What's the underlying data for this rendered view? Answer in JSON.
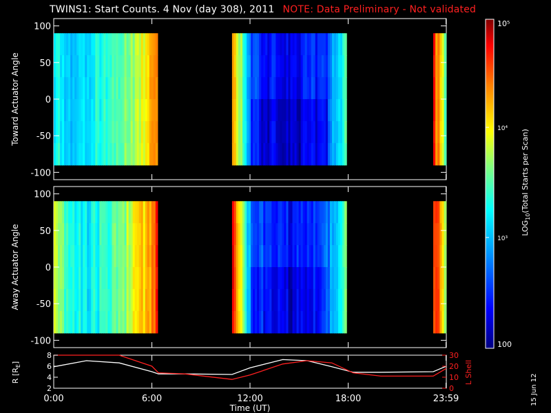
{
  "title": {
    "main": "TWINS1: Start Counts.  4 Nov (day 308), 2011",
    "note": "NOTE: Data Preliminary - Not validated"
  },
  "side_date": "15 Jun 12",
  "colorbar": {
    "label": "LOG10(Total Starts per Scan)",
    "label_prefix": "LOG",
    "label_sub": "10",
    "label_suffix": "(Total Starts per Scan)",
    "ticks": [
      "10⁵",
      "10⁴",
      "10³",
      "100"
    ],
    "colors": [
      "#000080",
      "#0000ff",
      "#00a0ff",
      "#00ffff",
      "#80ff80",
      "#ffff00",
      "#ff8000",
      "#ff0000",
      "#800000"
    ]
  },
  "chart_data": [
    {
      "type": "heatmap",
      "panel": "top",
      "ylabel": "Toward Actuator Angle",
      "ylim": [
        -110,
        110
      ],
      "yticks": [
        "100",
        "50",
        "0",
        "-50",
        "-100"
      ],
      "x_unit": "hours UT",
      "data_intervals": [
        [
          0.0,
          6.35
        ],
        [
          10.9,
          17.9
        ],
        [
          23.2,
          23.99
        ]
      ],
      "angle_range": [
        -90,
        90
      ],
      "description_series": [
        {
          "name": "interval1_mean_log_counts",
          "values": [
            3.3,
            3.1,
            3.2,
            3.4,
            3.6,
            3.9,
            4.3
          ]
        },
        {
          "name": "interval2_mean_log_counts",
          "values": [
            4.4,
            2.6,
            2.4,
            2.3,
            2.4,
            2.6,
            3.4
          ]
        },
        {
          "name": "interval3_mean_log_counts",
          "values": [
            4.6,
            4.2,
            3.5
          ]
        }
      ]
    },
    {
      "type": "heatmap",
      "panel": "middle",
      "ylabel": "Away Actuator Angle",
      "ylim": [
        -110,
        110
      ],
      "yticks": [
        "100",
        "50",
        "0",
        "-50",
        "-100"
      ],
      "x_unit": "hours UT",
      "data_intervals": [
        [
          0.0,
          6.35
        ],
        [
          10.9,
          17.9
        ],
        [
          23.2,
          23.99
        ]
      ],
      "angle_range": [
        -90,
        90
      ],
      "description_series": [
        {
          "name": "interval1_mean_log_counts",
          "values": [
            3.8,
            3.3,
            3.2,
            3.4,
            3.6,
            4.0,
            4.6
          ]
        },
        {
          "name": "interval2_mean_log_counts",
          "values": [
            4.7,
            2.7,
            2.5,
            2.4,
            2.5,
            2.7,
            3.5
          ]
        },
        {
          "name": "interval3_mean_log_counts",
          "values": [
            4.7,
            4.4,
            3.6
          ]
        }
      ]
    },
    {
      "type": "line",
      "panel": "bottom",
      "xlabel": "Time (UT)",
      "xticks": [
        "0:00",
        "6:00",
        "12:00",
        "18:00",
        "23:59"
      ],
      "x": [
        0,
        2,
        4,
        6,
        6.4,
        8,
        10.9,
        12,
        14,
        15.5,
        17,
        18.3,
        20,
        23.2,
        24
      ],
      "ylabel": "R [RE]",
      "ylabel_left": "R [R",
      "ylabel_sub": "E",
      "ylabel_end": "]",
      "ylim": [
        2,
        8
      ],
      "yticks_left": [
        "8",
        "6",
        "4",
        "2"
      ],
      "ylabel_right": "L Shell",
      "ylim_right": [
        0,
        30
      ],
      "yticks_right": [
        "30",
        "20",
        "10",
        "0"
      ],
      "series": [
        {
          "values": [
            5.9,
            7.0,
            6.6,
            5.0,
            4.6,
            4.6,
            4.5,
            5.7,
            7.2,
            7.0,
            5.9,
            4.9,
            4.9,
            5.0,
            6.0
          ]
        },
        {
          "values": [
            30,
            30,
            32,
            20,
            14,
            13,
            8,
            12,
            22,
            25,
            23,
            14,
            11,
            11,
            18
          ]
        }
      ],
      "series_colors": [
        "#ffffff",
        "#ff2020"
      ]
    }
  ]
}
